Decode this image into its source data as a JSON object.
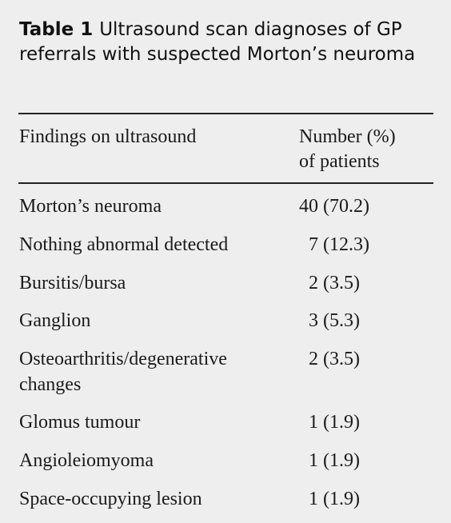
{
  "table": {
    "label": "Table 1",
    "caption": "Ultrasound scan diagnoses of GP referrals with suspected Morton’s neuroma",
    "header": {
      "col1": "Findings on ultrasound",
      "col2_line1": "Number (%)",
      "col2_line2": "of patients"
    },
    "rows": [
      {
        "finding": "Morton’s neuroma",
        "value": "40 (70.2)"
      },
      {
        "finding": "Nothing abnormal detected",
        "value": "  7 (12.3)"
      },
      {
        "finding": "Bursitis/bursa",
        "value": "  2 (3.5)"
      },
      {
        "finding": "Ganglion",
        "value": "  3 (5.3)"
      },
      {
        "finding": "Osteoarthritis/degenerative changes",
        "value": "  2 (3.5)"
      },
      {
        "finding": "Glomus tumour",
        "value": "  1 (1.9)"
      },
      {
        "finding": "Angioleiomyoma",
        "value": "  1 (1.9)"
      },
      {
        "finding": "Space-occupying lesion",
        "value": "  1 (1.9)"
      }
    ]
  }
}
